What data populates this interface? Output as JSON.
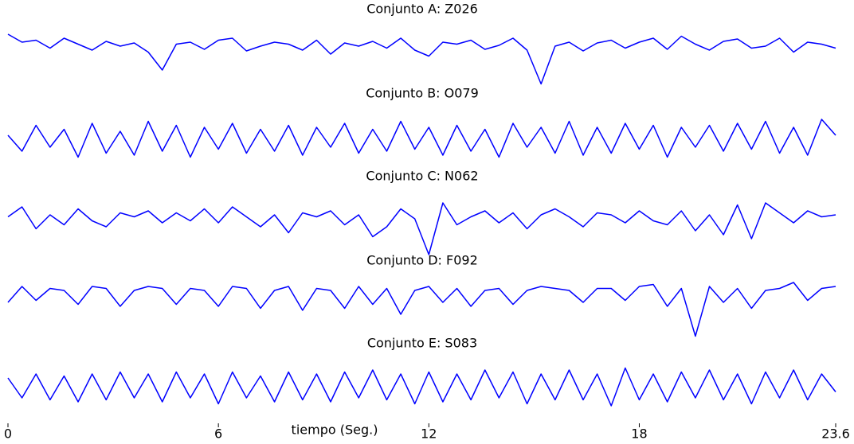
{
  "chart_data": {
    "type": "line",
    "xlabel": "tiempo (Seg.)",
    "xlim": [
      0,
      23.6
    ],
    "xticks": [
      0,
      6,
      12,
      18,
      23.6
    ],
    "ylim": [
      -100,
      100
    ],
    "x": [
      0,
      0.4,
      0.8,
      1.2,
      1.6,
      2,
      2.4,
      2.8,
      3.2,
      3.6,
      4,
      4.4,
      4.8,
      5.2,
      5.6,
      6,
      6.4,
      6.8,
      7.2,
      7.6,
      8,
      8.4,
      8.8,
      9.2,
      9.6,
      10,
      10.4,
      10.8,
      11.2,
      11.6,
      12,
      12.4,
      12.8,
      13.2,
      13.6,
      14,
      14.4,
      14.8,
      15.2,
      15.6,
      16,
      16.4,
      16.8,
      17.2,
      17.6,
      18,
      18.4,
      18.8,
      19.2,
      19.6,
      20,
      20.4,
      20.8,
      21.2,
      21.6,
      22,
      22.4,
      22.8,
      23.2,
      23.6
    ],
    "series": [
      {
        "title": "Conjunto A: Z026",
        "color": "#0000ff",
        "values": [
          30,
          10,
          15,
          -5,
          20,
          5,
          -10,
          12,
          0,
          8,
          -15,
          -60,
          5,
          10,
          -8,
          15,
          20,
          -12,
          0,
          10,
          5,
          -10,
          15,
          -20,
          8,
          0,
          12,
          -5,
          20,
          -10,
          -25,
          10,
          5,
          15,
          -8,
          2,
          20,
          -10,
          -95,
          0,
          10,
          -12,
          8,
          15,
          -5,
          10,
          20,
          -8,
          25,
          5,
          -10,
          12,
          18,
          -5,
          0,
          20,
          -15,
          10,
          5,
          -5
        ]
      },
      {
        "title": "Conjunto B: O079",
        "color": "#0000ff",
        "values": [
          10,
          -30,
          35,
          -20,
          25,
          -45,
          40,
          -35,
          20,
          -40,
          45,
          -30,
          35,
          -45,
          30,
          -25,
          40,
          -35,
          25,
          -30,
          35,
          -40,
          30,
          -20,
          40,
          -35,
          25,
          -30,
          45,
          -25,
          30,
          -40,
          35,
          -30,
          25,
          -45,
          40,
          -20,
          30,
          -35,
          45,
          -40,
          30,
          -35,
          40,
          -25,
          35,
          -45,
          30,
          -20,
          35,
          -30,
          40,
          -25,
          45,
          -35,
          30,
          -40,
          50,
          10
        ]
      },
      {
        "title": "Conjunto C: N062",
        "color": "#0000ff",
        "values": [
          5,
          30,
          -25,
          10,
          -15,
          25,
          -5,
          -20,
          15,
          5,
          20,
          -10,
          15,
          -5,
          25,
          -10,
          30,
          5,
          -20,
          10,
          -35,
          15,
          5,
          20,
          -15,
          10,
          -45,
          -20,
          25,
          0,
          -90,
          40,
          -15,
          5,
          20,
          -10,
          15,
          -25,
          10,
          25,
          5,
          -20,
          15,
          10,
          -10,
          20,
          -5,
          -15,
          20,
          -30,
          10,
          -40,
          35,
          -50,
          40,
          15,
          -10,
          20,
          5,
          10
        ]
      },
      {
        "title": "Conjunto D: F092",
        "color": "#0000ff",
        "values": [
          -20,
          20,
          -15,
          15,
          10,
          -25,
          20,
          15,
          -30,
          10,
          20,
          15,
          -25,
          15,
          10,
          -30,
          20,
          15,
          -35,
          10,
          20,
          -40,
          15,
          10,
          -35,
          20,
          -25,
          15,
          -50,
          10,
          20,
          -20,
          15,
          -30,
          10,
          15,
          -25,
          10,
          20,
          15,
          10,
          -20,
          15,
          15,
          -15,
          20,
          25,
          -30,
          15,
          -105,
          20,
          -20,
          15,
          -35,
          10,
          15,
          30,
          -15,
          15,
          20
        ]
      },
      {
        "title": "Conjunto E: S083",
        "color": "#0000ff",
        "values": [
          20,
          -30,
          30,
          -35,
          25,
          -40,
          30,
          -35,
          35,
          -30,
          30,
          -40,
          35,
          -30,
          30,
          -45,
          35,
          -30,
          25,
          -40,
          35,
          -35,
          30,
          -40,
          35,
          -30,
          40,
          -35,
          30,
          -45,
          35,
          -40,
          30,
          -35,
          40,
          -30,
          35,
          -45,
          30,
          -35,
          40,
          -35,
          30,
          -50,
          45,
          -35,
          30,
          -40,
          35,
          -30,
          40,
          -35,
          30,
          -45,
          35,
          -30,
          40,
          -35,
          30,
          -15
        ]
      }
    ]
  }
}
